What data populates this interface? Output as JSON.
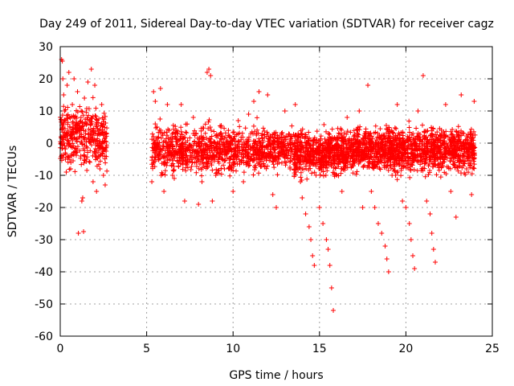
{
  "chart_data": {
    "type": "scatter",
    "title": "Day 249 of 2011, Sidereal Day-to-day VTEC variation (SDTVAR) for receiver cagz",
    "xlabel": "GPS time / hours",
    "ylabel": "SDTVAR / TECUs",
    "xlim": [
      0,
      25
    ],
    "ylim": [
      -60,
      30
    ],
    "xticks": [
      0,
      5,
      10,
      15,
      20,
      25
    ],
    "yticks": [
      30,
      20,
      10,
      0,
      -10,
      -20,
      -30,
      -40,
      -50,
      -60
    ],
    "grid": true,
    "marker": "+",
    "marker_color": "#ff0000",
    "series": [
      {
        "name": "SDTVAR",
        "points": [
          [
            0.05,
            2
          ],
          [
            0.08,
            26
          ],
          [
            0.12,
            25.5
          ],
          [
            0.15,
            20
          ],
          [
            0.2,
            15
          ],
          [
            0.25,
            10
          ],
          [
            0.3,
            -5
          ],
          [
            0.35,
            -9
          ],
          [
            0.4,
            18
          ],
          [
            0.45,
            8
          ],
          [
            0.5,
            22
          ],
          [
            0.55,
            5
          ],
          [
            0.6,
            -8
          ],
          [
            0.7,
            12
          ],
          [
            0.8,
            20
          ],
          [
            0.9,
            -3
          ],
          [
            1.0,
            16
          ],
          [
            1.05,
            -28
          ],
          [
            1.1,
            2
          ],
          [
            1.2,
            8
          ],
          [
            1.25,
            -18
          ],
          [
            1.3,
            -17
          ],
          [
            1.35,
            -27.5
          ],
          [
            1.4,
            14
          ],
          [
            1.5,
            -5
          ],
          [
            1.6,
            19
          ],
          [
            1.7,
            7
          ],
          [
            1.8,
            23
          ],
          [
            1.9,
            -12
          ],
          [
            2.0,
            18
          ],
          [
            2.1,
            -15
          ],
          [
            2.2,
            3
          ],
          [
            2.3,
            -8
          ],
          [
            2.4,
            12
          ],
          [
            2.5,
            -10
          ],
          [
            2.6,
            -13
          ],
          [
            5.3,
            -12
          ],
          [
            5.4,
            16
          ],
          [
            5.5,
            13
          ],
          [
            5.6,
            5
          ],
          [
            5.8,
            17
          ],
          [
            6.0,
            -15
          ],
          [
            6.2,
            12
          ],
          [
            6.5,
            -10
          ],
          [
            6.8,
            3
          ],
          [
            7.0,
            12
          ],
          [
            7.2,
            -18
          ],
          [
            7.5,
            -5
          ],
          [
            7.7,
            8
          ],
          [
            8.0,
            -19
          ],
          [
            8.2,
            -12
          ],
          [
            8.5,
            22
          ],
          [
            8.6,
            23
          ],
          [
            8.7,
            21
          ],
          [
            8.8,
            -18
          ],
          [
            9.0,
            -10
          ],
          [
            9.3,
            5
          ],
          [
            9.5,
            -8
          ],
          [
            9.8,
            2
          ],
          [
            10.0,
            -15
          ],
          [
            10.3,
            7
          ],
          [
            10.6,
            -12
          ],
          [
            10.9,
            9
          ],
          [
            11.2,
            13
          ],
          [
            11.5,
            16
          ],
          [
            11.8,
            -5
          ],
          [
            12.0,
            15
          ],
          [
            12.3,
            -16
          ],
          [
            12.5,
            -20
          ],
          [
            12.8,
            3
          ],
          [
            13.0,
            10
          ],
          [
            13.3,
            -8
          ],
          [
            13.6,
            12
          ],
          [
            13.9,
            -12
          ],
          [
            14.0,
            -17
          ],
          [
            14.2,
            -22
          ],
          [
            14.4,
            -26
          ],
          [
            14.5,
            -30
          ],
          [
            14.6,
            -35
          ],
          [
            14.7,
            -38
          ],
          [
            14.8,
            -10
          ],
          [
            15.0,
            -20
          ],
          [
            15.2,
            -25
          ],
          [
            15.4,
            -30
          ],
          [
            15.5,
            -33
          ],
          [
            15.6,
            -38
          ],
          [
            15.7,
            -45
          ],
          [
            15.8,
            -52
          ],
          [
            16.0,
            -10
          ],
          [
            16.3,
            -15
          ],
          [
            16.6,
            8
          ],
          [
            17.0,
            -5
          ],
          [
            17.3,
            10
          ],
          [
            17.5,
            -20
          ],
          [
            17.8,
            18
          ],
          [
            18.0,
            -15
          ],
          [
            18.2,
            -20
          ],
          [
            18.4,
            -25
          ],
          [
            18.6,
            -28
          ],
          [
            18.8,
            -32
          ],
          [
            18.9,
            -36
          ],
          [
            19.0,
            -40
          ],
          [
            19.2,
            -10
          ],
          [
            19.5,
            12
          ],
          [
            19.8,
            -18
          ],
          [
            20.0,
            -20
          ],
          [
            20.2,
            -25
          ],
          [
            20.3,
            -30
          ],
          [
            20.4,
            -35
          ],
          [
            20.5,
            -39
          ],
          [
            20.7,
            10
          ],
          [
            21.0,
            21
          ],
          [
            21.2,
            -18
          ],
          [
            21.4,
            -22
          ],
          [
            21.5,
            -28
          ],
          [
            21.6,
            -33
          ],
          [
            21.7,
            -37
          ],
          [
            22.0,
            -5
          ],
          [
            22.3,
            12
          ],
          [
            22.6,
            -15
          ],
          [
            22.9,
            -23
          ],
          [
            23.2,
            15
          ],
          [
            23.5,
            -8
          ],
          [
            23.8,
            -16
          ],
          [
            23.95,
            13
          ]
        ]
      }
    ],
    "dense_bands": [
      {
        "x_from": 0.0,
        "x_to": 2.7,
        "y_center": 2,
        "y_spread": 8,
        "count": 380
      },
      {
        "x_from": 5.3,
        "x_to": 13.5,
        "y_center": -2,
        "y_spread": 6,
        "count": 1100
      },
      {
        "x_from": 13.5,
        "x_to": 17.0,
        "y_center": -3,
        "y_spread": 6,
        "count": 700
      },
      {
        "x_from": 17.0,
        "x_to": 24.0,
        "y_center": -2,
        "y_spread": 6,
        "count": 1300
      }
    ]
  }
}
